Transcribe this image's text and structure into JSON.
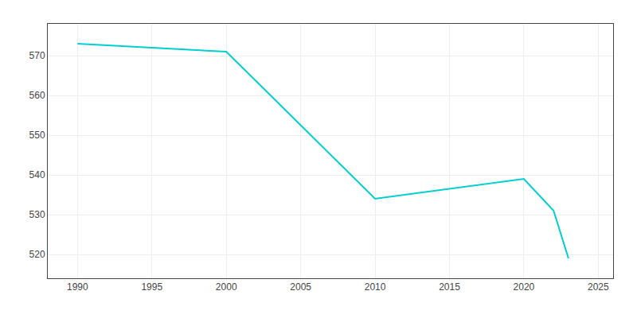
{
  "chart_data": {
    "type": "line",
    "x": [
      1990,
      2000,
      2010,
      2020,
      2022,
      2023
    ],
    "values": [
      573,
      571,
      534,
      539,
      531,
      519
    ],
    "color": "#00CED1",
    "xlim": [
      1988,
      2026
    ],
    "ylim": [
      514,
      578
    ],
    "xticks": [
      1990,
      1995,
      2000,
      2005,
      2010,
      2015,
      2020,
      2025
    ],
    "yticks": [
      520,
      530,
      540,
      550,
      560,
      570
    ],
    "grid": true
  }
}
